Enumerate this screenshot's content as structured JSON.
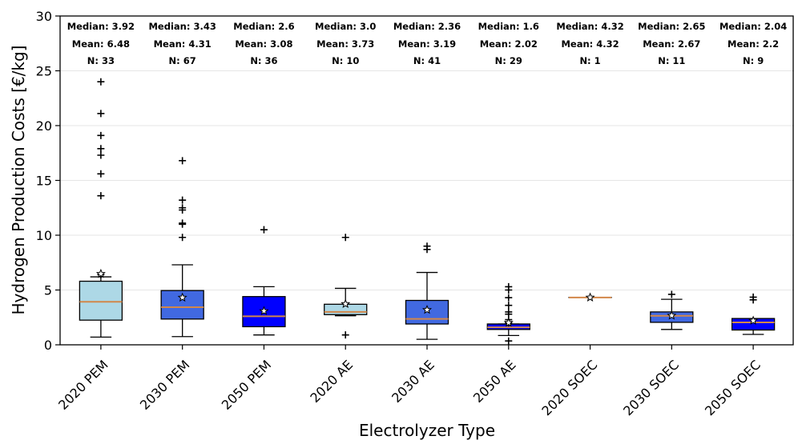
{
  "chart_data": {
    "type": "box",
    "xlabel": "Electrolyzer Type",
    "ylabel": "Hydrogen Production Costs [€/kg]",
    "ylim": [
      0,
      30
    ],
    "yticks": [
      0,
      5,
      10,
      15,
      20,
      25,
      30
    ],
    "grid": "horizontal",
    "colors": {
      "light": "#add8e6",
      "medium": "#4169e1",
      "dark": "#0000ff",
      "median": "#d2874a"
    },
    "categories": [
      {
        "label": "2020 PEM",
        "color": "light",
        "q1": 2.25,
        "median": 3.92,
        "q3": 5.8,
        "whislo": 0.7,
        "whishi": 6.2,
        "mean": 6.48,
        "fliers": [
          6.4,
          13.6,
          15.6,
          17.3,
          17.9,
          19.1,
          21.1,
          24.0
        ],
        "stats": {
          "median_text": "Median: 3.92",
          "mean_text": "Mean: 6.48",
          "n_text": "N: 33"
        }
      },
      {
        "label": "2030 PEM",
        "color": "medium",
        "q1": 2.35,
        "median": 3.43,
        "q3": 4.95,
        "whislo": 0.75,
        "whishi": 7.3,
        "mean": 4.31,
        "fliers": [
          9.8,
          11.0,
          11.1,
          12.3,
          12.5,
          13.2,
          16.8
        ],
        "stats": {
          "median_text": "Median: 3.43",
          "mean_text": "Mean: 4.31",
          "n_text": "N: 67"
        }
      },
      {
        "label": "2050 PEM",
        "color": "dark",
        "q1": 1.65,
        "median": 2.6,
        "q3": 4.4,
        "whislo": 0.9,
        "whishi": 5.3,
        "mean": 3.08,
        "fliers": [
          10.5
        ],
        "stats": {
          "median_text": "Median: 2.6",
          "mean_text": "Mean: 3.08",
          "n_text": "N: 36"
        }
      },
      {
        "label": "2020 AE",
        "color": "light",
        "q1": 2.75,
        "median": 3.0,
        "q3": 3.7,
        "whislo": 2.65,
        "whishi": 5.15,
        "mean": 3.73,
        "fliers": [
          0.9,
          9.8
        ],
        "stats": {
          "median_text": "Median: 3.0",
          "mean_text": "Mean: 3.73",
          "n_text": "N: 10"
        }
      },
      {
        "label": "2030 AE",
        "color": "medium",
        "q1": 1.9,
        "median": 2.36,
        "q3": 4.05,
        "whislo": 0.5,
        "whishi": 6.6,
        "mean": 3.19,
        "fliers": [
          8.7,
          9.0
        ],
        "stats": {
          "median_text": "Median: 2.36",
          "mean_text": "Mean: 3.19",
          "n_text": "N: 41"
        }
      },
      {
        "label": "2050 AE",
        "color": "dark",
        "q1": 1.4,
        "median": 1.6,
        "q3": 1.9,
        "whislo": 0.85,
        "whishi": 1.9,
        "mean": 2.02,
        "fliers": [
          0.35,
          2.0,
          2.3,
          2.8,
          3.0,
          3.6,
          4.3,
          5.0,
          5.3
        ],
        "stats": {
          "median_text": "Median: 1.6",
          "mean_text": "Mean: 2.02",
          "n_text": "N: 29"
        }
      },
      {
        "label": "2020 SOEC",
        "color": "light",
        "q1": 4.32,
        "median": 4.32,
        "q3": 4.32,
        "whislo": 4.32,
        "whishi": 4.32,
        "mean": 4.32,
        "fliers": [],
        "stats": {
          "median_text": "Median: 4.32",
          "mean_text": "Mean: 4.32",
          "n_text": "N: 1"
        }
      },
      {
        "label": "2030 SOEC",
        "color": "medium",
        "q1": 2.05,
        "median": 2.65,
        "q3": 3.0,
        "whislo": 1.4,
        "whishi": 4.15,
        "mean": 2.67,
        "fliers": [
          4.6
        ],
        "stats": {
          "median_text": "Median: 2.65",
          "mean_text": "Mean: 2.67",
          "n_text": "N: 11"
        }
      },
      {
        "label": "2050 SOEC",
        "color": "dark",
        "q1": 1.35,
        "median": 2.04,
        "q3": 2.4,
        "whislo": 0.95,
        "whishi": 2.4,
        "mean": 2.2,
        "fliers": [
          4.1,
          4.35
        ],
        "stats": {
          "median_text": "Median: 2.04",
          "mean_text": "Mean: 2.2",
          "n_text": "N: 9"
        }
      }
    ]
  }
}
